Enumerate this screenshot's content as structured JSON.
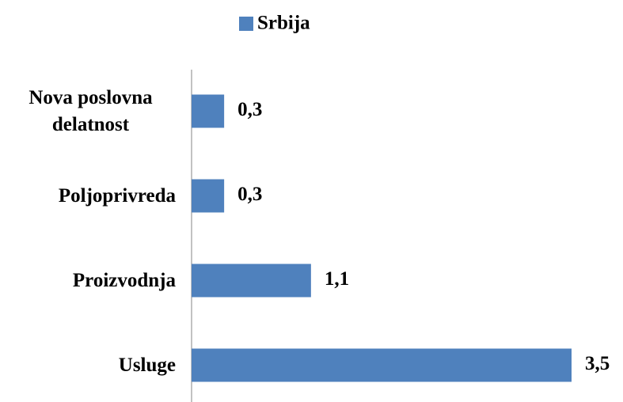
{
  "chart_data": {
    "type": "barh",
    "series": [
      {
        "name": "Srbija",
        "color": "#4f81bd",
        "values": [
          0.3,
          0.3,
          1.1,
          3.5
        ],
        "value_labels": [
          "0,3",
          "0,3",
          "1,1",
          "3,5"
        ]
      }
    ],
    "categories": [
      "Nova poslovna delatnost",
      "Poljoprivreda",
      "Proizvodnja",
      "Usluge"
    ],
    "xlim": [
      0,
      3.5
    ]
  }
}
